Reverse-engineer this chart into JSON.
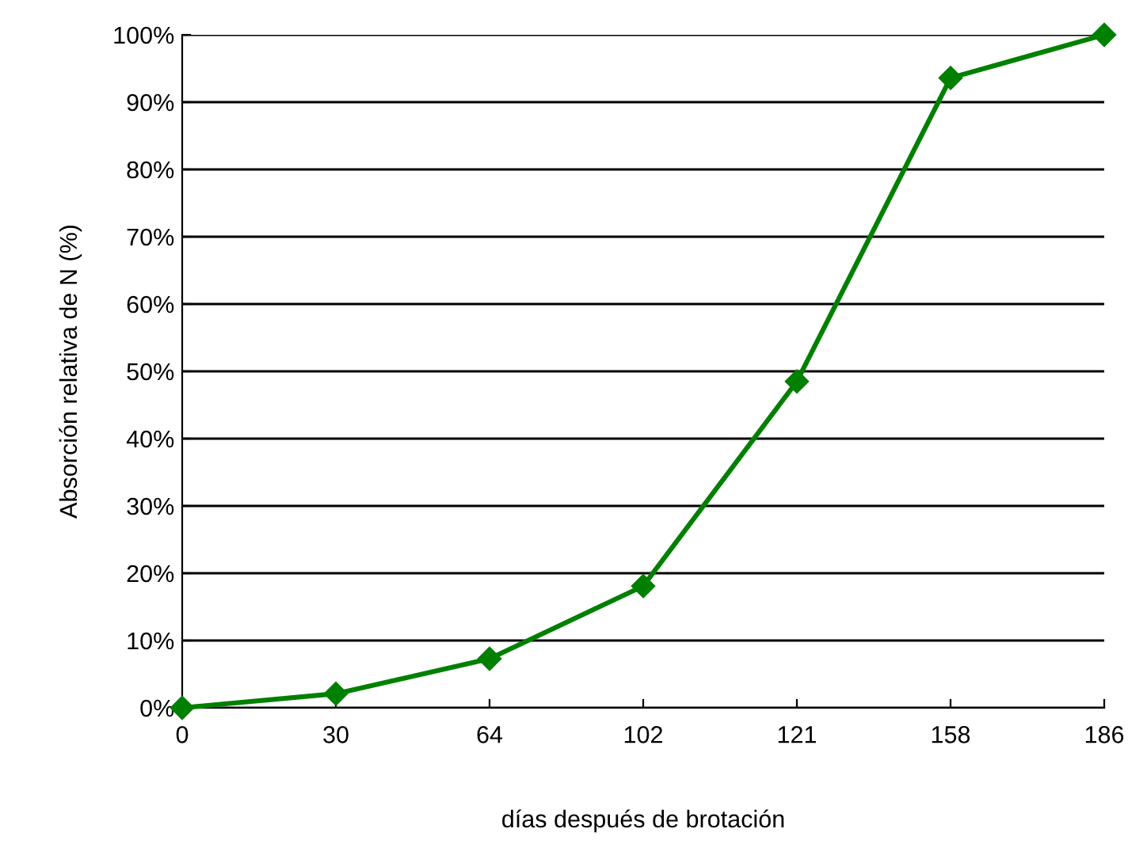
{
  "chart_data": {
    "type": "line",
    "xlabel": "días después de brotación",
    "ylabel": "Absorción relativa de N (%)",
    "categories": [
      "0",
      "30",
      "64",
      "102",
      "121",
      "158",
      "186"
    ],
    "series": [
      {
        "color": "#008000",
        "values": [
          0,
          2.1,
          7.3,
          18.1,
          48.5,
          93.6,
          100
        ]
      }
    ],
    "ylim": [
      0,
      100
    ],
    "yticks": [
      {
        "value": 0,
        "label": "0%"
      },
      {
        "value": 10,
        "label": "10%"
      },
      {
        "value": 20,
        "label": "20%"
      },
      {
        "value": 30,
        "label": "30%"
      },
      {
        "value": 40,
        "label": "40%"
      },
      {
        "value": 50,
        "label": "50%"
      },
      {
        "value": 60,
        "label": "60%"
      },
      {
        "value": 70,
        "label": "70%"
      },
      {
        "value": 80,
        "label": "80%"
      },
      {
        "value": 90,
        "label": "90%"
      },
      {
        "value": 100,
        "label": "100%"
      }
    ],
    "grid": "y",
    "marker": "diamond",
    "line_style": "solid",
    "legend": false
  }
}
